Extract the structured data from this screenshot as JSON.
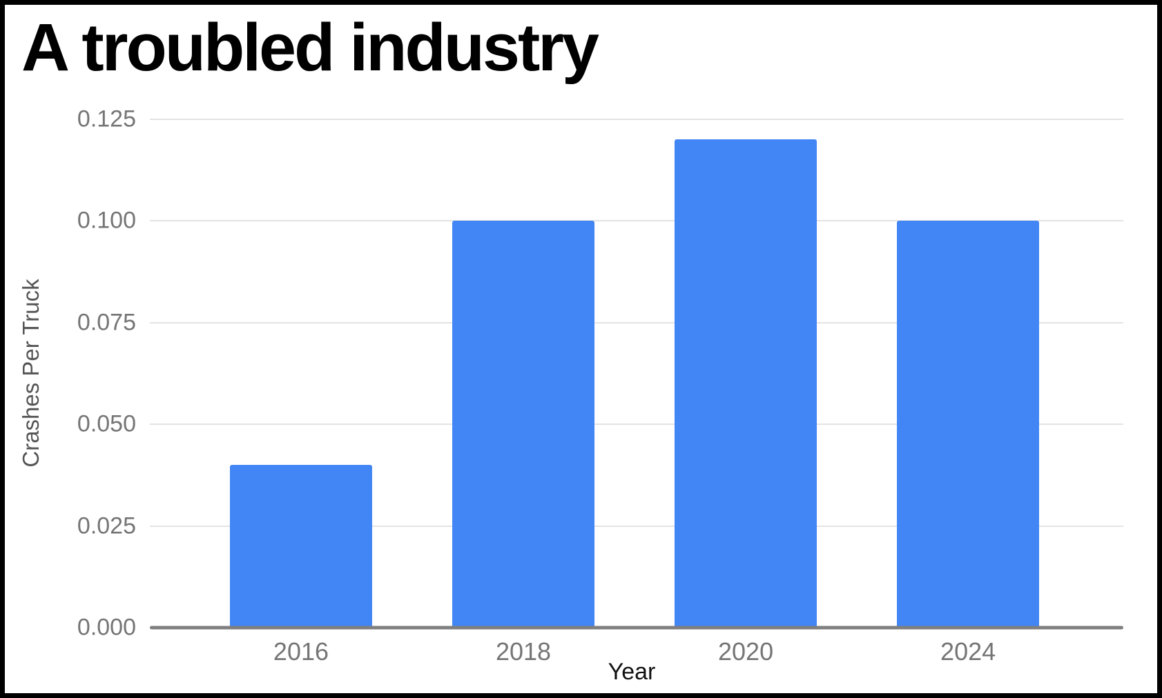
{
  "page": {
    "title": "A troubled industry"
  },
  "chart_data": {
    "type": "bar",
    "title": "A troubled industry",
    "categories": [
      "2016",
      "2018",
      "2020",
      "2024"
    ],
    "values": [
      0.04,
      0.1,
      0.12,
      0.1
    ],
    "xlabel": "Year",
    "ylabel": "Crashes Per Truck",
    "ylim": [
      0,
      0.125
    ],
    "yticks": [
      "0.000",
      "0.025",
      "0.050",
      "0.075",
      "0.100",
      "0.125"
    ],
    "grid": true,
    "legend": "none",
    "bar_color": "#4285F4",
    "colors": {
      "bar": "#4285F4",
      "gridline": "#e3e3e3",
      "baseline": "#7f7f7f",
      "tick_label": "#757575",
      "y_axis_title": "#555555",
      "x_axis_title": "#111111",
      "title_text": "#000000",
      "frame_border": "#000000",
      "background": "#ffffff"
    }
  }
}
